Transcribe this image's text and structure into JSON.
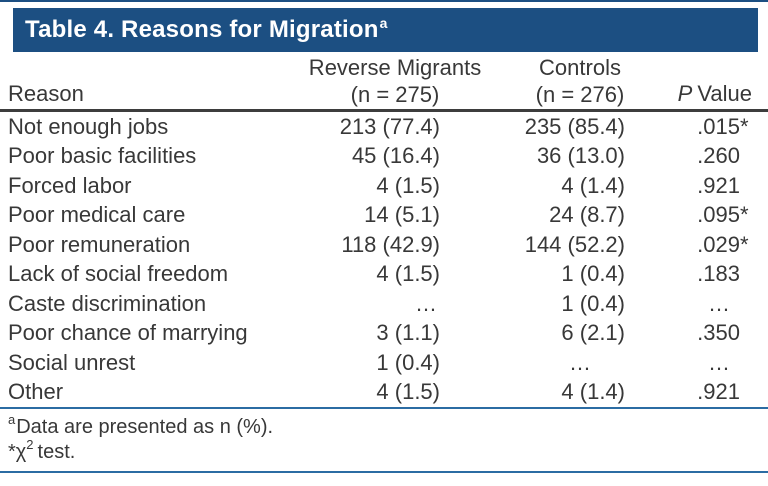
{
  "colors": {
    "header_bg": "#1C4F82",
    "rule_blue": "#2B6CA3",
    "rule_dark": "#3D3D3D",
    "text": "#383838",
    "title_text": "#FFFFFF"
  },
  "title": {
    "text": "Table 4. Reasons for Migration",
    "superscript": "a"
  },
  "header": {
    "reason": "Reason",
    "reverse_line1": "Reverse Migrants",
    "reverse_line2": "(n = 275)",
    "controls_line1": "Controls",
    "controls_line2": "(n = 276)",
    "p_italic": "P",
    "p_rest": "Value"
  },
  "table": {
    "rows": [
      {
        "reason": "Not enough jobs",
        "reverse": "213 (77.4)",
        "controls": "235 (85.4)",
        "p": ".015",
        "star": "*"
      },
      {
        "reason": "Poor basic facilities",
        "reverse": "45 (16.4)",
        "controls": "36 (13.0)",
        "p": ".260",
        "star": ""
      },
      {
        "reason": "Forced labor",
        "reverse": "4 (1.5)",
        "controls": "4 (1.4)",
        "p": ".921",
        "star": ""
      },
      {
        "reason": "Poor medical care",
        "reverse": "14 (5.1)",
        "controls": "24 (8.7)",
        "p": ".095",
        "star": "*"
      },
      {
        "reason": "Poor remuneration",
        "reverse": "118 (42.9)",
        "controls": "144 (52.2)",
        "p": ".029",
        "star": "*"
      },
      {
        "reason": "Lack of social freedom",
        "reverse": "4 (1.5)",
        "controls": "1 (0.4)",
        "p": ".183",
        "star": ""
      },
      {
        "reason": "Caste discrimination",
        "reverse": "…",
        "controls": "1 (0.4)",
        "p": "…",
        "star": ""
      },
      {
        "reason": "Poor chance of marrying",
        "reverse": "3 (1.1)",
        "controls": "6 (2.1)",
        "p": ".350",
        "star": ""
      },
      {
        "reason": "Social unrest",
        "reverse": "1 (0.4)",
        "controls": "…",
        "p": "…",
        "star": ""
      },
      {
        "reason": "Other",
        "reverse": "4 (1.5)",
        "controls": "4 (1.4)",
        "p": ".921",
        "star": ""
      }
    ]
  },
  "footnotes": {
    "note1_sup": "a",
    "note1_text": "Data are presented as n (%).",
    "note2_prefix": "*χ",
    "note2_sup": "2",
    "note2_rest": "test."
  }
}
